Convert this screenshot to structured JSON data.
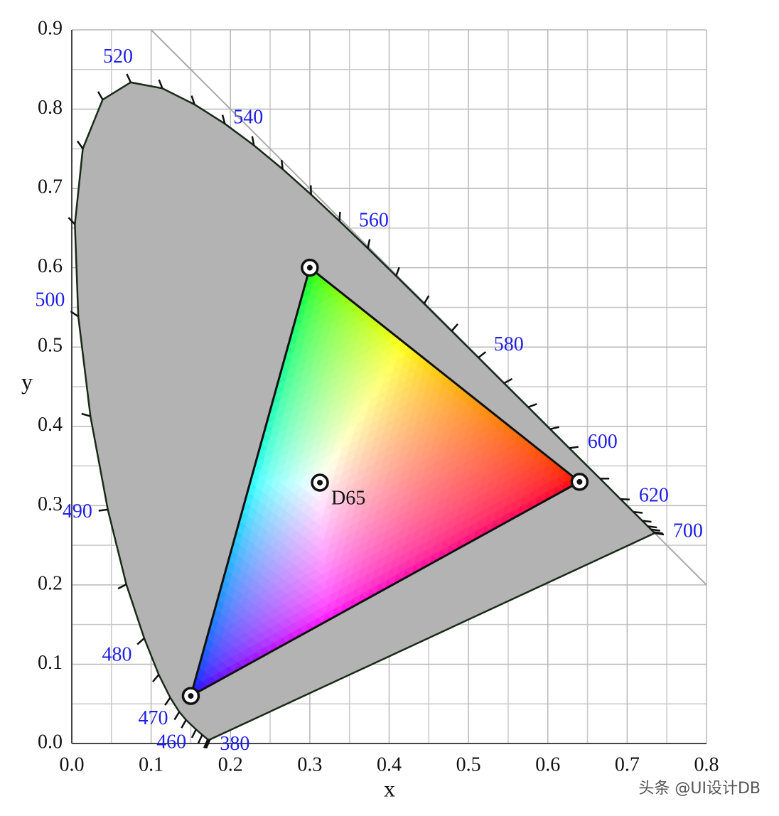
{
  "chart_data": {
    "type": "chromaticity",
    "xlabel": "x",
    "ylabel": "y",
    "xlim": [
      0,
      0.8
    ],
    "ylim": [
      0,
      0.9
    ],
    "xticks": [
      {
        "value": 0,
        "label": "0.0"
      },
      0.1,
      0.2,
      0.3,
      0.4,
      0.5,
      0.6,
      0.7,
      0.8
    ],
    "yticks": [
      {
        "value": 0,
        "label": "0.0"
      },
      0.1,
      0.2,
      0.3,
      0.4,
      0.5,
      0.6,
      0.7,
      0.8,
      0.9
    ],
    "grid": true,
    "locus": {
      "color": "#b3b3b3",
      "label_color": "#1f1fe6",
      "x": [
        0.1741,
        0.1733,
        0.1714,
        0.1644,
        0.1566,
        0.144,
        0.1355,
        0.1241,
        0.1096,
        0.0913,
        0.0687,
        0.0454,
        0.0235,
        0.0082,
        0.0039,
        0.0139,
        0.0389,
        0.0743,
        0.1142,
        0.1547,
        0.1929,
        0.2296,
        0.2658,
        0.3016,
        0.3373,
        0.3731,
        0.4087,
        0.4441,
        0.4788,
        0.5125,
        0.5448,
        0.5752,
        0.6029,
        0.627,
        0.6658,
        0.6915,
        0.7079,
        0.719,
        0.726,
        0.73,
        0.7334,
        0.7347
      ],
      "y": [
        0.005,
        0.0048,
        0.0051,
        0.0109,
        0.0177,
        0.0297,
        0.0399,
        0.0578,
        0.0868,
        0.1327,
        0.2007,
        0.295,
        0.4127,
        0.5384,
        0.6548,
        0.7502,
        0.812,
        0.8338,
        0.8262,
        0.8059,
        0.7816,
        0.7543,
        0.7243,
        0.6923,
        0.6589,
        0.6245,
        0.5896,
        0.5547,
        0.5202,
        0.4866,
        0.4544,
        0.4242,
        0.3965,
        0.3725,
        0.334,
        0.3083,
        0.292,
        0.2809,
        0.274,
        0.27,
        0.2666,
        0.2653
      ],
      "labels": [
        380,
        null,
        null,
        null,
        null,
        460,
        null,
        470,
        null,
        480,
        null,
        490,
        null,
        500,
        null,
        null,
        null,
        520,
        null,
        null,
        null,
        540,
        null,
        null,
        null,
        560,
        null,
        null,
        null,
        580,
        null,
        null,
        null,
        600,
        null,
        620,
        null,
        null,
        null,
        null,
        null,
        700
      ]
    },
    "gamut": {
      "x": [
        0.64,
        0.3,
        0.15
      ],
      "y": [
        0.33,
        0.6,
        0.06
      ]
    },
    "white_point": {
      "label": "D65",
      "x": 0.3127,
      "y": 0.329
    },
    "reference_line": {
      "x": [
        0.1,
        0.8
      ],
      "y": [
        0.9,
        0.2
      ]
    }
  },
  "watermark": "头条 @UI设计DB"
}
